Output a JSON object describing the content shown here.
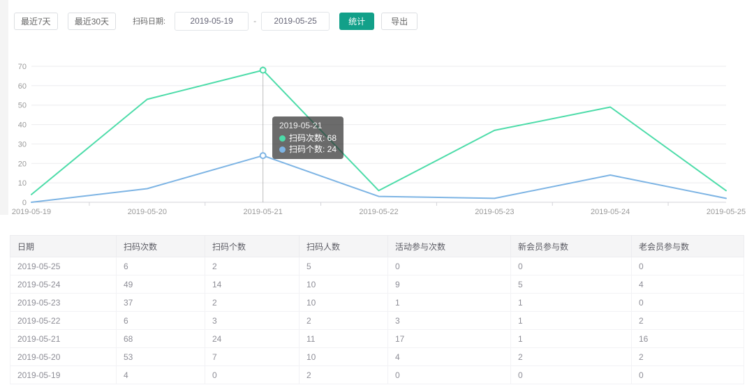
{
  "toolbar": {
    "btn_last7": "最近7天",
    "btn_last30": "最近30天",
    "date_label": "扫码日期:",
    "date_start": "2019-05-19",
    "date_separator": "-",
    "date_end": "2019-05-25",
    "btn_stats": "统计",
    "btn_export": "导出"
  },
  "colors": {
    "primary_teal": "#12a089",
    "series_green": "#4ddca9",
    "series_blue": "#7db4e4",
    "grid_line": "#ebebee",
    "axis_line": "#d3d3d8",
    "axis_label": "#999999",
    "axis_pointer": "#9a9a9a"
  },
  "chart_data": {
    "type": "line",
    "x": [
      "2019-05-19",
      "2019-05-20",
      "2019-05-21",
      "2019-05-22",
      "2019-05-23",
      "2019-05-24",
      "2019-05-25"
    ],
    "series": [
      {
        "name": "扫码次数",
        "color": "#4ddca9",
        "values": [
          4,
          53,
          68,
          6,
          37,
          49,
          6
        ]
      },
      {
        "name": "扫码个数",
        "color": "#7db4e4",
        "values": [
          0,
          7,
          24,
          3,
          2,
          14,
          2
        ]
      }
    ],
    "title": "",
    "xlabel": "",
    "ylabel": "",
    "ylim": [
      0,
      70
    ],
    "y_ticks": [
      0,
      10,
      20,
      30,
      40,
      50,
      60,
      70
    ],
    "grid": true,
    "legend_position": "none",
    "tooltip": {
      "title": "2019-05-21",
      "highlight_index": 2,
      "items": [
        {
          "label": "扫码次数",
          "value": "68",
          "color": "#4ddca9"
        },
        {
          "label": "扫码个数",
          "value": "24",
          "color": "#7db4e4"
        }
      ]
    }
  },
  "table": {
    "columns": [
      "日期",
      "扫码次数",
      "扫码个数",
      "扫码人数",
      "活动参与次数",
      "新会员参与数",
      "老会员参与数"
    ],
    "rows": [
      [
        "2019-05-25",
        "6",
        "2",
        "5",
        "0",
        "0",
        "0"
      ],
      [
        "2019-05-24",
        "49",
        "14",
        "10",
        "9",
        "5",
        "4"
      ],
      [
        "2019-05-23",
        "37",
        "2",
        "10",
        "1",
        "1",
        "0"
      ],
      [
        "2019-05-22",
        "6",
        "3",
        "2",
        "3",
        "1",
        "2"
      ],
      [
        "2019-05-21",
        "68",
        "24",
        "11",
        "17",
        "1",
        "16"
      ],
      [
        "2019-05-20",
        "53",
        "7",
        "10",
        "4",
        "2",
        "2"
      ],
      [
        "2019-05-19",
        "4",
        "0",
        "2",
        "0",
        "0",
        "0"
      ]
    ]
  }
}
